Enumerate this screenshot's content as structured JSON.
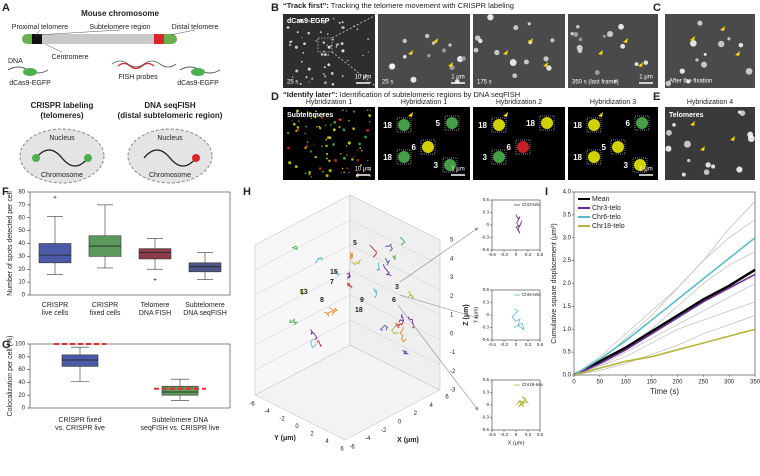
{
  "panel_labels": [
    "A",
    "B",
    "C",
    "D",
    "E",
    "F",
    "G",
    "H",
    "I"
  ],
  "panel_a": {
    "title": "Mouse chromosome",
    "labels": [
      "Proximal telomere",
      "Subtelomere region",
      "Distal telomere",
      "DNA",
      "Centromere",
      "dCas9-EGFP",
      "FISH probes",
      "dCas9-EGFP"
    ],
    "crispr": {
      "title": [
        "CRISPR labeling",
        "(telomeres)"
      ],
      "nucleus": "Nucleus",
      "chromosome": "Chromosome"
    },
    "seqfish": {
      "title": [
        "DNA seqFISH",
        "(distal subtelomeric region)"
      ],
      "nucleus": "Nucleus",
      "chromosome": "Chromosome"
    }
  },
  "panel_b": {
    "title_bold": "“Track first”:",
    "title_rest": " Tracking the telomere movement with CRISPR labeling",
    "images": [
      {
        "label": "dCas9-EGFP",
        "time": "25 s",
        "scale": "10 μm"
      },
      {
        "time": "25 s",
        "scale": "1 μm"
      },
      {
        "time": "175 s"
      },
      {
        "time": "350 s (last frame)",
        "scale": "1 μm"
      }
    ]
  },
  "panel_c": {
    "caption": "After the fixation"
  },
  "panel_d": {
    "title_bold": "“Identify later”:",
    "title_rest": " Identification of subtelomeric regions by DNA seqFISH",
    "images": [
      {
        "header": "Hybridization 1",
        "label": "Subtelomeres",
        "scale": "10 μm"
      },
      {
        "header": "Hybridization 1",
        "spots": [
          "18",
          "6",
          "5",
          "18",
          "3"
        ],
        "scale": "1 μm"
      },
      {
        "header": "Hybridization 2",
        "spots": [
          "18",
          "6",
          "18",
          "3"
        ]
      },
      {
        "header": "Hybridization 3",
        "spots": [
          "18",
          "5",
          "6",
          "18",
          "3"
        ],
        "scale": "1 μm"
      }
    ]
  },
  "panel_e": {
    "header": "Hybridization 4",
    "label": "Telomeres"
  },
  "panel_h": {
    "z_label": "Z (μm)",
    "y_label": "Y (μm)",
    "x_label": "X (μm)",
    "z_ticks": [
      "5",
      "4",
      "3",
      "2",
      "1",
      "0",
      "-1",
      "-2",
      "-3"
    ],
    "y_ticks": [
      "-6",
      "-4",
      "-2",
      "0",
      "2",
      "4",
      "6"
    ],
    "x_ticks": [
      "-6",
      "-4",
      "-2",
      "0",
      "2",
      "4",
      "6"
    ],
    "spot_labels": [
      "5",
      "7",
      "15",
      "9",
      "13",
      "8",
      "18",
      "3",
      "6"
    ]
  },
  "chart_data": [
    {
      "type": "box",
      "y_label": "Number of spots detected per cell",
      "ylim": [
        0,
        80
      ],
      "yticks": [
        0,
        10,
        20,
        30,
        40,
        50,
        60,
        70,
        80
      ],
      "categories": [
        [
          "CRISPR",
          "live cells"
        ],
        [
          "CRISPR",
          "fixed cells"
        ],
        [
          "Telomere",
          "DNA FISH"
        ],
        [
          "Subtelomere",
          "DNA seqFISH"
        ]
      ],
      "boxes": [
        {
          "color": "#4b5aa6",
          "min": 16,
          "q1": 25,
          "median": 31,
          "q3": 40,
          "max": 61,
          "outliers": [
            76
          ]
        },
        {
          "color": "#5c9a5c",
          "min": 21,
          "q1": 30,
          "median": 38,
          "q3": 46,
          "max": 70,
          "outliers": []
        },
        {
          "color": "#8a3b4c",
          "min": 20,
          "q1": 28,
          "median": 33,
          "q3": 36,
          "max": 44,
          "outliers": [
            12
          ]
        },
        {
          "color": "#4d5688",
          "min": 12,
          "q1": 18,
          "median": 22,
          "q3": 25,
          "max": 33,
          "outliers": []
        }
      ]
    },
    {
      "type": "box",
      "y_label": "Colocalization per cell (%)",
      "ylim": [
        0,
        100
      ],
      "yticks": [
        0,
        20,
        40,
        60,
        80,
        100
      ],
      "categories": [
        [
          "CRISPR fixed",
          "vs. CRISPR live"
        ],
        [
          "Subtelomere DNA",
          "seqFISH vs. CRISPR live"
        ]
      ],
      "reference_color": "#e0302a",
      "boxes": [
        {
          "color": "#4b5aa6",
          "min": 41,
          "q1": 65,
          "median": 75,
          "q3": 83,
          "max": 95,
          "outliers": [],
          "reference": 100
        },
        {
          "color": "#5c9a5c",
          "min": 12,
          "q1": 20,
          "median": 25,
          "q3": 34,
          "max": 45,
          "outliers": [],
          "reference": 30
        }
      ]
    },
    {
      "type": "line",
      "legend": "upper right",
      "xlim": [
        -0.6,
        0.6
      ],
      "xticks": [
        -0.6,
        -0.3,
        0,
        0.3,
        0.6
      ],
      "ylim": [
        -0.6,
        0.6
      ],
      "yticks": [
        -0.6,
        -0.3,
        0,
        0.3,
        0.6
      ],
      "x": [
        0.0,
        0.05,
        0.1,
        0.02,
        0.08,
        0.15,
        0.05,
        0.1,
        0.0,
        0.12
      ],
      "series": [
        {
          "name": "Chr3-telo",
          "color": "#6a2c91",
          "values": [
            0.25,
            0.15,
            0.2,
            0.05,
            -0.05,
            0.1,
            -0.1,
            -0.2,
            -0.05,
            0.0
          ]
        }
      ]
    },
    {
      "type": "line",
      "legend": "upper right",
      "y_label": "Y (μm)",
      "xlim": [
        -0.6,
        0.6
      ],
      "xticks": [
        -0.6,
        -0.3,
        0,
        0.3,
        0.6
      ],
      "ylim": [
        -0.6,
        0.6
      ],
      "yticks": [
        -0.6,
        -0.3,
        0,
        0.3,
        0.6
      ],
      "x": [
        -0.05,
        0.05,
        -0.1,
        0.0,
        0.1,
        0.05,
        -0.05,
        0.15,
        0.2,
        0.05
      ],
      "series": [
        {
          "name": "Chr6-telo",
          "color": "#5bbcc4",
          "values": [
            0.15,
            0.1,
            -0.05,
            -0.15,
            -0.1,
            -0.25,
            -0.3,
            -0.2,
            -0.35,
            -0.25
          ]
        }
      ]
    },
    {
      "type": "line",
      "legend": "upper right",
      "x_label": "X (μm)",
      "xlim": [
        -0.6,
        0.6
      ],
      "xticks": [
        -0.6,
        -0.3,
        0,
        0.3,
        0.6
      ],
      "ylim": [
        -0.6,
        0.6
      ],
      "yticks": [
        -0.6,
        -0.3,
        0,
        0.3,
        0.6
      ],
      "x": [
        0.0,
        0.1,
        0.2,
        0.05,
        0.25,
        0.15,
        0.3,
        0.1,
        0.2,
        0.05
      ],
      "series": [
        {
          "name": "Chr18-telo",
          "color": "#b5b43a",
          "values": [
            0.0,
            0.1,
            0.05,
            -0.05,
            0.15,
            0.2,
            0.05,
            0.1,
            -0.05,
            0.1
          ]
        }
      ]
    },
    {
      "type": "line",
      "legend": "upper left",
      "x_label": "Time (s)",
      "y_label": "Cumulative square displacement (μm²)",
      "xlim": [
        0,
        350
      ],
      "xticks": [
        0,
        50,
        100,
        150,
        200,
        250,
        300,
        350
      ],
      "ylim": [
        0,
        4
      ],
      "yticks": [
        {
          "value": 0,
          "label": "0.0"
        },
        {
          "value": 0.5,
          "label": "0.5"
        },
        {
          "value": 1,
          "label": "1.0"
        },
        {
          "value": 1.5,
          "label": "1.5"
        },
        {
          "value": 2,
          "label": "2.0"
        },
        {
          "value": 2.5,
          "label": "2.5"
        },
        {
          "value": 3,
          "label": "3.0"
        },
        {
          "value": 3.5,
          "label": "3.5"
        },
        {
          "value": 4,
          "label": "4.0"
        }
      ],
      "x": [
        0,
        50,
        100,
        150,
        200,
        250,
        300,
        350
      ],
      "other_series": [
        {
          "color": "#bbbbbb",
          "values": [
            0,
            0.2,
            0.5,
            0.8,
            1.1,
            1.4,
            1.7,
            2.0
          ]
        },
        {
          "color": "#bbbbbb",
          "values": [
            0,
            0.4,
            0.9,
            1.4,
            1.9,
            2.5,
            3.0,
            3.4
          ]
        },
        {
          "color": "#bbbbbb",
          "values": [
            0,
            0.3,
            0.8,
            1.3,
            1.9,
            2.5,
            3.2,
            3.8
          ]
        },
        {
          "color": "#bbbbbb",
          "values": [
            0,
            0.1,
            0.25,
            0.45,
            0.65,
            0.9,
            1.1,
            1.3
          ]
        },
        {
          "color": "#bbbbbb",
          "values": [
            0,
            0.3,
            0.6,
            1.0,
            1.5,
            2.0,
            2.4,
            2.7
          ]
        },
        {
          "color": "#bbbbbb",
          "values": [
            0,
            0.2,
            0.4,
            0.7,
            1.0,
            1.2,
            1.4,
            1.6
          ]
        }
      ],
      "series": [
        {
          "name": "Mean",
          "color": "#000000",
          "values": [
            0,
            0.3,
            0.6,
            0.95,
            1.3,
            1.65,
            1.95,
            2.3
          ]
        },
        {
          "name": "Chr3-telo",
          "color": "#6a2c91",
          "values": [
            0,
            0.25,
            0.55,
            0.9,
            1.25,
            1.6,
            1.9,
            2.2
          ]
        },
        {
          "name": "Chr6-telo",
          "color": "#5bbcc4",
          "values": [
            0,
            0.35,
            0.75,
            1.2,
            1.65,
            2.1,
            2.55,
            3.0
          ]
        },
        {
          "name": "Chr18-telo",
          "color": "#b5b43a",
          "values": [
            0,
            0.15,
            0.3,
            0.4,
            0.55,
            0.7,
            0.85,
            1.0
          ]
        }
      ]
    }
  ]
}
